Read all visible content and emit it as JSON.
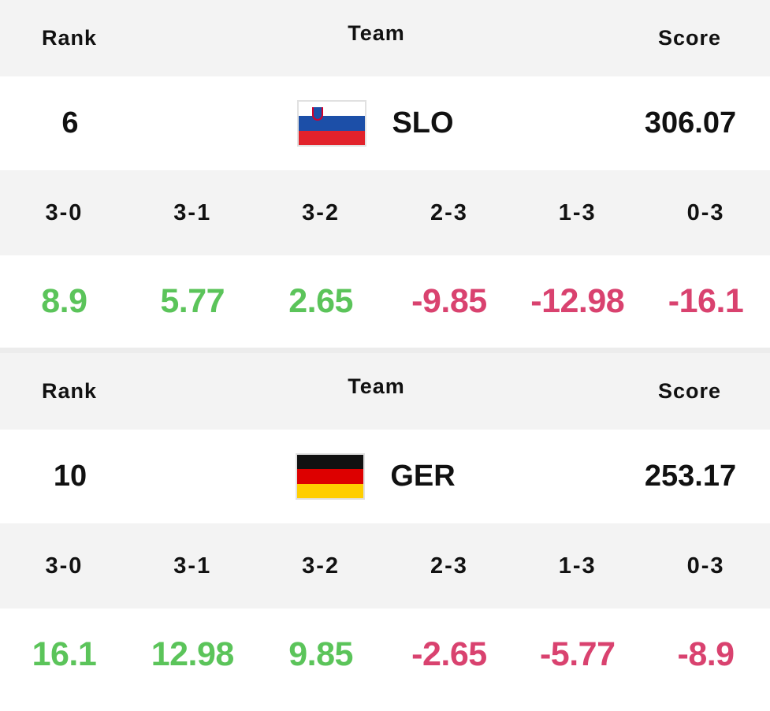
{
  "colors": {
    "positive": "#5bc45a",
    "negative": "#d9426f",
    "header_bg": "#f3f3f3"
  },
  "cards": [
    {
      "headers": {
        "rank": "Rank",
        "team": "Team",
        "score": "Score"
      },
      "rank": "6",
      "team_code": "SLO",
      "flag_icon": "slovenia-flag-icon",
      "flag_stripes": [
        "#ffffff",
        "#1c4fa8",
        "#e2222b"
      ],
      "score": "306.07",
      "results": [
        {
          "label": "3-0",
          "value": "8.9",
          "sign": "pos"
        },
        {
          "label": "3-1",
          "value": "5.77",
          "sign": "pos"
        },
        {
          "label": "3-2",
          "value": "2.65",
          "sign": "pos"
        },
        {
          "label": "2-3",
          "value": "-9.85",
          "sign": "neg"
        },
        {
          "label": "1-3",
          "value": "-12.98",
          "sign": "neg"
        },
        {
          "label": "0-3",
          "value": "-16.1",
          "sign": "neg"
        }
      ]
    },
    {
      "headers": {
        "rank": "Rank",
        "team": "Team",
        "score": "Score"
      },
      "rank": "10",
      "team_code": "GER",
      "flag_icon": "germany-flag-icon",
      "flag_stripes": [
        "#111111",
        "#dd0000",
        "#ffce00"
      ],
      "score": "253.17",
      "results": [
        {
          "label": "3-0",
          "value": "16.1",
          "sign": "pos"
        },
        {
          "label": "3-1",
          "value": "12.98",
          "sign": "pos"
        },
        {
          "label": "3-2",
          "value": "9.85",
          "sign": "pos"
        },
        {
          "label": "2-3",
          "value": "-2.65",
          "sign": "neg"
        },
        {
          "label": "1-3",
          "value": "-5.77",
          "sign": "neg"
        },
        {
          "label": "0-3",
          "value": "-8.9",
          "sign": "neg"
        }
      ]
    }
  ]
}
